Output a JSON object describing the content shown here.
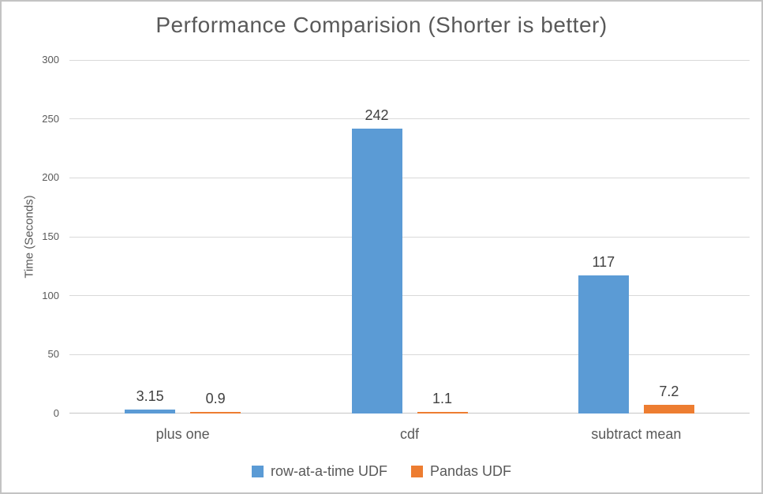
{
  "window": {
    "background_color": "#ffffff",
    "frame_border_color": "#c3c3c3"
  },
  "chart_data": {
    "type": "bar",
    "title": "Performance Comparision (Shorter is better)",
    "categories": [
      "plus one",
      "cdf",
      "subtract mean"
    ],
    "series": [
      {
        "name": "row-at-a-time UDF",
        "color": "#5B9BD5",
        "values": [
          3.15,
          242,
          117
        ]
      },
      {
        "name": "Pandas UDF",
        "color": "#ED7D31",
        "values": [
          0.9,
          1.1,
          7.2
        ]
      }
    ],
    "data_labels": [
      [
        "3.15",
        "242",
        "117"
      ],
      [
        "0.9",
        "1.1",
        "7.2"
      ]
    ],
    "xlabel": "",
    "ylabel": "Time (Seconds)",
    "ylim": [
      0,
      300
    ],
    "yticks": [
      0,
      50,
      100,
      150,
      200,
      250,
      300
    ],
    "grid": true,
    "legend_position": "bottom",
    "colors": {
      "gridline": "#d9d9d9",
      "axis_line": "#c6c6c6",
      "tick_text": "#595959",
      "title_text": "#595959",
      "data_label_text": "#404040"
    }
  }
}
